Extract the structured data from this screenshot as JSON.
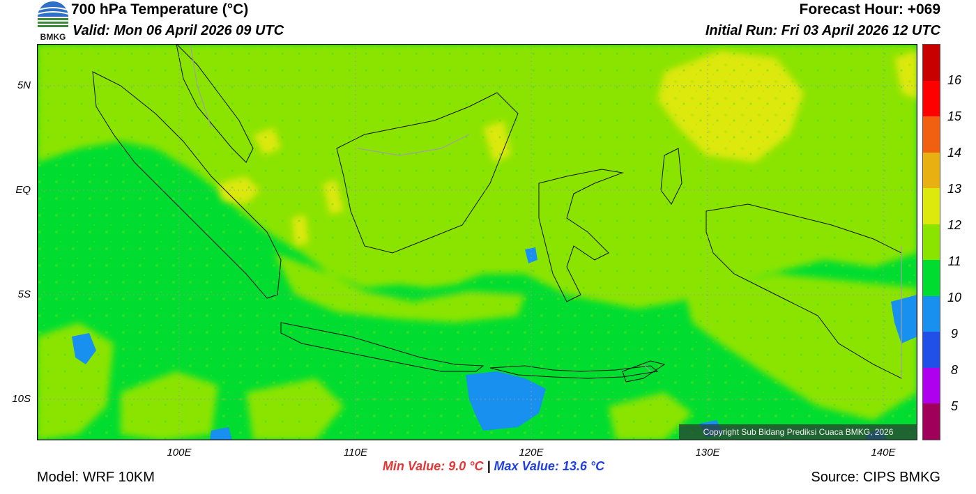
{
  "header": {
    "title": "700 hPa Temperature (°C)",
    "valid": "Valid: Mon 06 April 2026 09 UTC",
    "forecast_hour": "Forecast Hour: +069",
    "initial_run": "Initial Run: Fri 03 April 2026 12 UTC",
    "logo_text": "BMKG"
  },
  "map": {
    "lat_labels": [
      "5N",
      "EQ",
      "5S",
      "10S"
    ],
    "lon_labels": [
      "100E",
      "110E",
      "120E",
      "130E",
      "140E"
    ],
    "extent": {
      "lon_min": 92,
      "lon_max": 142,
      "lat_min": -12.2,
      "lat_max": 7.0
    },
    "copyright": "Copyright Sub Bidang Prediksi Cuaca BMKG, 2026"
  },
  "colorbar": {
    "labels": [
      "16",
      "15",
      "14",
      "13",
      "12",
      "11",
      "10",
      "9",
      "8",
      "5"
    ],
    "colors": [
      "#c80000",
      "#ff0000",
      "#f06010",
      "#e8b010",
      "#dde80c",
      "#8ae400",
      "#00dd30",
      "#1890f0",
      "#2050e8",
      "#b000f0",
      "#a0005a"
    ]
  },
  "stats": {
    "min_label": "Min Value: 9.0 °C",
    "separator": "|",
    "max_label": "Max Value: 13.6 °C"
  },
  "footer": {
    "model": "Model: WRF 10KM",
    "source": "Source: CIPS BMKG"
  }
}
